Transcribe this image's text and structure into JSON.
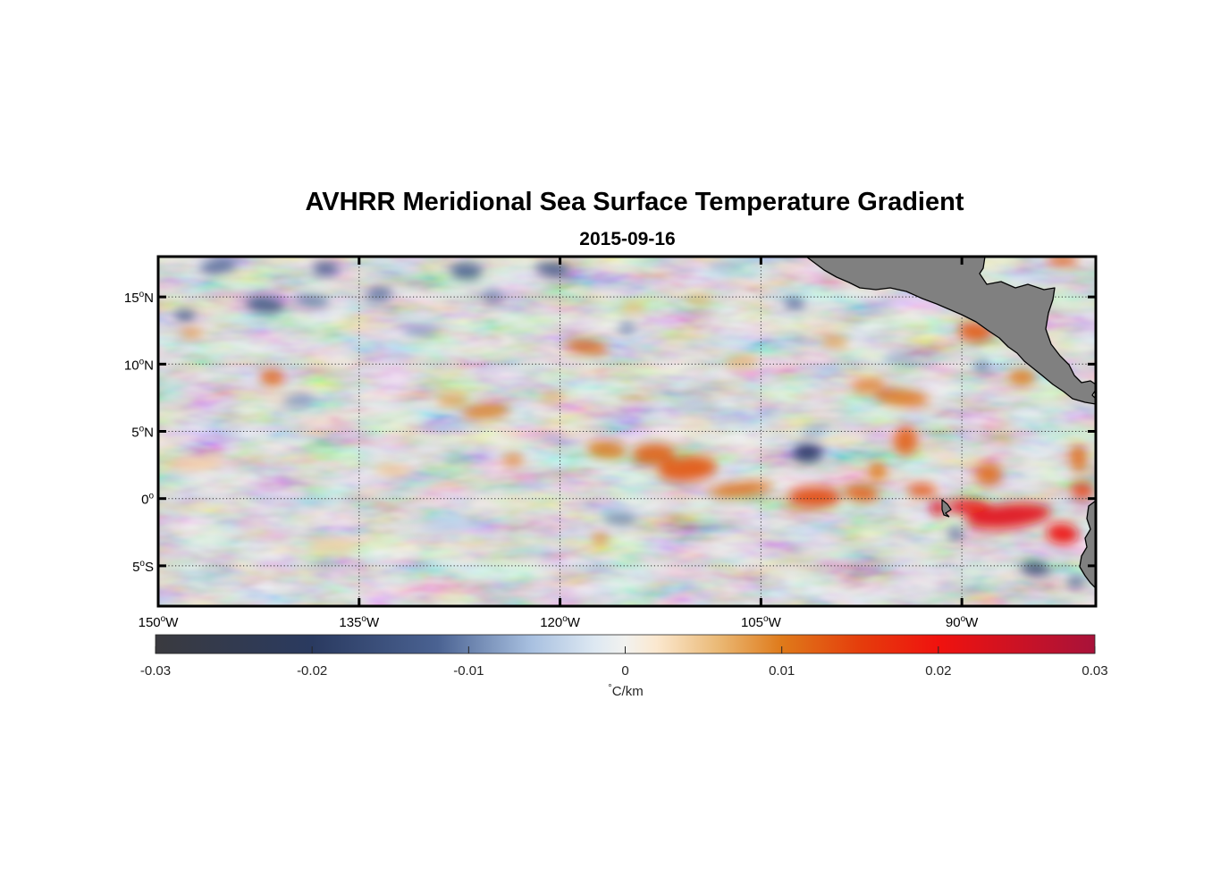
{
  "title": "AVHRR Meridional Sea Surface Temperature Gradient",
  "subtitle": "2015-09-16",
  "map": {
    "lon_range": [
      -150,
      -80
    ],
    "lat_range": [
      -8,
      18
    ],
    "x_ticks": [
      {
        "value": -150,
        "num": "150",
        "deg": "o",
        "hemi": "W"
      },
      {
        "value": -135,
        "num": "135",
        "deg": "o",
        "hemi": "W"
      },
      {
        "value": -120,
        "num": "120",
        "deg": "o",
        "hemi": "W"
      },
      {
        "value": -105,
        "num": "105",
        "deg": "o",
        "hemi": "W"
      },
      {
        "value": -90,
        "num": "90",
        "deg": "o",
        "hemi": "W"
      }
    ],
    "y_ticks": [
      {
        "value": 15,
        "num": "15",
        "deg": "o",
        "hemi": "N"
      },
      {
        "value": 10,
        "num": "10",
        "deg": "o",
        "hemi": "N"
      },
      {
        "value": 5,
        "num": "5",
        "deg": "o",
        "hemi": "N"
      },
      {
        "value": 0,
        "num": "0",
        "deg": "o",
        "hemi": ""
      },
      {
        "value": -5,
        "num": "5",
        "deg": "o",
        "hemi": "S"
      }
    ],
    "grid": "dotted",
    "land_color": "#808080",
    "features": [
      {
        "lon": -110.5,
        "lat": 2.2,
        "v": 0.013,
        "rlon": 2.2,
        "rlat": 0.9
      },
      {
        "lon": -113.0,
        "lat": 3.3,
        "v": 0.012,
        "rlon": 1.6,
        "rlat": 0.8
      },
      {
        "lon": -116.5,
        "lat": 3.6,
        "v": 0.01,
        "rlon": 1.5,
        "rlat": 0.6
      },
      {
        "lon": -106.5,
        "lat": 0.7,
        "v": 0.011,
        "rlon": 2.4,
        "rlat": 0.5
      },
      {
        "lon": -101.0,
        "lat": 0.1,
        "v": 0.014,
        "rlon": 2.0,
        "rlat": 0.8
      },
      {
        "lon": -97.5,
        "lat": 0.4,
        "v": 0.012,
        "rlon": 1.3,
        "rlat": 0.6
      },
      {
        "lon": -86.5,
        "lat": -1.3,
        "v": 0.022,
        "rlon": 3.2,
        "rlat": 0.9
      },
      {
        "lon": -89.5,
        "lat": -0.6,
        "v": 0.019,
        "rlon": 1.6,
        "rlat": 0.5
      },
      {
        "lon": -82.5,
        "lat": -2.6,
        "v": 0.02,
        "rlon": 1.2,
        "rlat": 0.8
      },
      {
        "lon": -91.8,
        "lat": -0.7,
        "v": 0.021,
        "rlon": 0.5,
        "rlat": 0.6
      },
      {
        "lon": -93.0,
        "lat": 0.6,
        "v": 0.013,
        "rlon": 1.1,
        "rlat": 0.5
      },
      {
        "lon": -94.2,
        "lat": 4.3,
        "v": 0.012,
        "rlon": 0.9,
        "rlat": 1.1
      },
      {
        "lon": -96.3,
        "lat": 2.0,
        "v": 0.01,
        "rlon": 0.7,
        "rlat": 0.7
      },
      {
        "lon": -88.0,
        "lat": 1.8,
        "v": 0.011,
        "rlon": 1.0,
        "rlat": 0.8
      },
      {
        "lon": -81.0,
        "lat": 0.6,
        "v": 0.015,
        "rlon": 0.9,
        "rlat": 0.6
      },
      {
        "lon": -81.3,
        "lat": 3.0,
        "v": 0.011,
        "rlon": 0.6,
        "rlat": 1.0
      },
      {
        "lon": -101.5,
        "lat": 3.4,
        "v": -0.02,
        "rlon": 1.1,
        "rlat": 0.7
      },
      {
        "lon": -84.5,
        "lat": -5.2,
        "v": -0.017,
        "rlon": 1.1,
        "rlat": 0.5
      },
      {
        "lon": -81.5,
        "lat": -6.2,
        "v": -0.012,
        "rlon": 0.6,
        "rlat": 0.4
      },
      {
        "lon": -90.5,
        "lat": -2.6,
        "v": -0.012,
        "rlon": 0.5,
        "rlat": 0.4
      },
      {
        "lon": -89.0,
        "lat": 12.4,
        "v": 0.013,
        "rlon": 1.3,
        "rlat": 0.7
      },
      {
        "lon": -86.6,
        "lat": 13.9,
        "v": 0.012,
        "rlon": 0.7,
        "rlat": 0.5
      },
      {
        "lon": -85.5,
        "lat": 9.0,
        "v": 0.01,
        "rlon": 1.0,
        "rlat": 0.6
      },
      {
        "lon": -94.5,
        "lat": 7.5,
        "v": 0.01,
        "rlon": 2.0,
        "rlat": 0.6
      },
      {
        "lon": -97.0,
        "lat": 8.4,
        "v": 0.009,
        "rlon": 1.2,
        "rlat": 0.5
      },
      {
        "lon": -82.5,
        "lat": 17.7,
        "v": 0.012,
        "rlon": 1.2,
        "rlat": 0.4
      },
      {
        "lon": -118.0,
        "lat": 11.3,
        "v": 0.011,
        "rlon": 1.6,
        "rlat": 0.5
      },
      {
        "lon": -125.5,
        "lat": 6.5,
        "v": 0.01,
        "rlon": 1.8,
        "rlat": 0.5
      },
      {
        "lon": -128.0,
        "lat": 7.3,
        "v": 0.008,
        "rlon": 1.2,
        "rlat": 0.4
      },
      {
        "lon": -141.5,
        "lat": 9.0,
        "v": 0.011,
        "rlon": 0.9,
        "rlat": 0.6
      },
      {
        "lon": -147.5,
        "lat": 12.3,
        "v": 0.009,
        "rlon": 0.8,
        "rlat": 0.3
      },
      {
        "lon": -123.5,
        "lat": 2.9,
        "v": 0.009,
        "rlon": 0.8,
        "rlat": 0.4
      },
      {
        "lon": -117.0,
        "lat": -3.0,
        "v": 0.009,
        "rlon": 0.6,
        "rlat": 0.4
      },
      {
        "lon": -106.5,
        "lat": 10.2,
        "v": 0.007,
        "rlon": 1.3,
        "rlat": 0.4
      },
      {
        "lon": -99.5,
        "lat": 11.7,
        "v": 0.008,
        "rlon": 1.0,
        "rlat": 0.4
      },
      {
        "lon": -109.5,
        "lat": 14.8,
        "v": 0.007,
        "rlon": 1.0,
        "rlat": 0.3
      },
      {
        "lon": -114.5,
        "lat": 14.2,
        "v": 0.007,
        "rlon": 1.0,
        "rlat": 0.3
      },
      {
        "lon": -120.5,
        "lat": 7.6,
        "v": 0.007,
        "rlon": 1.0,
        "rlat": 0.3
      },
      {
        "lon": -132.5,
        "lat": 2.1,
        "v": 0.005,
        "rlon": 1.4,
        "rlat": 0.4
      },
      {
        "lon": -147.0,
        "lat": 2.6,
        "v": 0.004,
        "rlon": 2.0,
        "rlat": 0.5
      },
      {
        "lon": -137.0,
        "lat": -3.5,
        "v": 0.004,
        "rlon": 2.0,
        "rlat": 0.5
      },
      {
        "lon": -142.0,
        "lat": 14.4,
        "v": -0.014,
        "rlon": 1.4,
        "rlat": 0.6
      },
      {
        "lon": -145.5,
        "lat": 17.3,
        "v": -0.012,
        "rlon": 1.4,
        "rlat": 0.5
      },
      {
        "lon": -137.5,
        "lat": 17.1,
        "v": -0.014,
        "rlon": 1.0,
        "rlat": 0.5
      },
      {
        "lon": -138.5,
        "lat": 14.7,
        "v": -0.011,
        "rlon": 1.3,
        "rlat": 0.4
      },
      {
        "lon": -133.5,
        "lat": 15.2,
        "v": -0.011,
        "rlon": 1.0,
        "rlat": 0.5
      },
      {
        "lon": -127.0,
        "lat": 16.9,
        "v": -0.013,
        "rlon": 1.2,
        "rlat": 0.6
      },
      {
        "lon": -120.5,
        "lat": 17.0,
        "v": -0.015,
        "rlon": 1.3,
        "rlat": 0.5
      },
      {
        "lon": -125.0,
        "lat": 15.0,
        "v": -0.01,
        "rlon": 0.8,
        "rlat": 0.4
      },
      {
        "lon": -148.0,
        "lat": 13.6,
        "v": -0.015,
        "rlon": 0.8,
        "rlat": 0.4
      },
      {
        "lon": -130.5,
        "lat": 12.5,
        "v": -0.008,
        "rlon": 1.3,
        "rlat": 0.4
      },
      {
        "lon": -139.5,
        "lat": 7.3,
        "v": -0.009,
        "rlon": 1.2,
        "rlat": 0.4
      },
      {
        "lon": -115.0,
        "lat": 12.7,
        "v": -0.01,
        "rlon": 0.6,
        "rlat": 0.4
      },
      {
        "lon": -102.5,
        "lat": 14.5,
        "v": -0.012,
        "rlon": 0.8,
        "rlat": 0.4
      },
      {
        "lon": -101.0,
        "lat": 5.0,
        "v": -0.007,
        "rlon": 1.0,
        "rlat": 0.4
      },
      {
        "lon": -115.5,
        "lat": -1.5,
        "v": -0.01,
        "rlon": 1.3,
        "rlat": 0.4
      },
      {
        "lon": -88.5,
        "lat": 9.8,
        "v": -0.011,
        "rlon": 0.6,
        "rlat": 0.4
      },
      {
        "lon": -107.5,
        "lat": 17.2,
        "v": -0.006,
        "rlon": 1.4,
        "rlat": 0.4
      },
      {
        "lon": -94.5,
        "lat": 10.5,
        "v": -0.007,
        "rlon": 1.2,
        "rlat": 0.4
      },
      {
        "lon": -110.0,
        "lat": 7.0,
        "v": -0.005,
        "rlon": 1.5,
        "rlat": 0.4
      },
      {
        "lon": -128.5,
        "lat": -2.0,
        "v": -0.004,
        "rlon": 2.0,
        "rlat": 0.5
      }
    ]
  },
  "colorbar": {
    "vmin": -0.03,
    "vmax": 0.03,
    "ticks": [
      {
        "value": -0.03,
        "label": "-0.03"
      },
      {
        "value": -0.02,
        "label": "-0.02"
      },
      {
        "value": -0.01,
        "label": "-0.01"
      },
      {
        "value": 0,
        "label": "0"
      },
      {
        "value": 0.01,
        "label": "0.01"
      },
      {
        "value": 0.02,
        "label": "0.02"
      },
      {
        "value": 0.03,
        "label": "0.03"
      }
    ],
    "unit_deg": "°",
    "unit": "C/km",
    "stops": [
      {
        "v": -0.03,
        "c": "#3a3a3f"
      },
      {
        "v": -0.02,
        "c": "#2a3a60"
      },
      {
        "v": -0.012,
        "c": "#4a6292"
      },
      {
        "v": -0.006,
        "c": "#a8c0e0"
      },
      {
        "v": -0.002,
        "c": "#dde8f2"
      },
      {
        "v": 0,
        "c": "#f2f2ef"
      },
      {
        "v": 0.002,
        "c": "#fbe8cf"
      },
      {
        "v": 0.006,
        "c": "#eab874"
      },
      {
        "v": 0.01,
        "c": "#df7a1a"
      },
      {
        "v": 0.015,
        "c": "#e53d0c"
      },
      {
        "v": 0.02,
        "c": "#f0120e"
      },
      {
        "v": 0.03,
        "c": "#a8123a"
      }
    ]
  }
}
